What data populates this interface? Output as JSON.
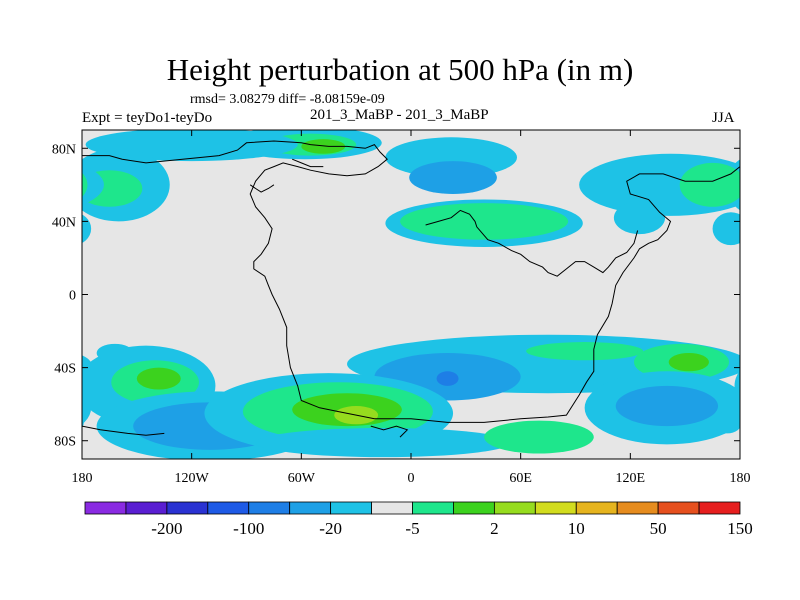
{
  "chart_data": {
    "type": "contour-map",
    "title": "Height perturbation at 500 hPa (in m)",
    "stats_line": "rmsd= 3.08279 diff= -8.08159e-09",
    "left_label": "Expt = teyDo1-teyDo",
    "center_label": "201_3_MaBP - 201_3_MaBP",
    "right_label": "JJA",
    "lon_range": [
      -180,
      180
    ],
    "lat_range": [
      -90,
      90
    ],
    "x_ticks": [
      {
        "value": -180,
        "label": "180"
      },
      {
        "value": -120,
        "label": "120W"
      },
      {
        "value": -60,
        "label": "60W"
      },
      {
        "value": 0,
        "label": "0"
      },
      {
        "value": 60,
        "label": "60E"
      },
      {
        "value": 120,
        "label": "120E"
      },
      {
        "value": 180,
        "label": "180"
      }
    ],
    "y_ticks": [
      {
        "value": 80,
        "label": "80N"
      },
      {
        "value": 40,
        "label": "40N"
      },
      {
        "value": 0,
        "label": "0"
      },
      {
        "value": -40,
        "label": "40S"
      },
      {
        "value": -80,
        "label": "80S"
      }
    ],
    "colorbar": {
      "colors": [
        "#8A2BE2",
        "#5A1ED2",
        "#2A32D2",
        "#1E5AE6",
        "#1E7EE6",
        "#1EA0E6",
        "#1EC2E6",
        "#E6E6E6",
        "#1EE68C",
        "#3CD21E",
        "#96DC1E",
        "#D2DC1E",
        "#E6B41E",
        "#E68C1E",
        "#E6501E",
        "#E61E1E"
      ],
      "labels": [
        {
          "after_index": 1,
          "text": "-200"
        },
        {
          "after_index": 3,
          "text": "-100"
        },
        {
          "after_index": 5,
          "text": "-20"
        },
        {
          "after_index": 7,
          "text": "-5"
        },
        {
          "after_index": 9,
          "text": "2"
        },
        {
          "after_index": 11,
          "text": "10"
        },
        {
          "after_index": 13,
          "text": "50"
        },
        {
          "after_index": 15,
          "text": "150"
        }
      ]
    },
    "blobs": [
      {
        "lon": 22,
        "lat": 75,
        "rx": 36,
        "ry": 11,
        "level": "cyan"
      },
      {
        "lon": -58,
        "lat": 83,
        "rx": 42,
        "ry": 9,
        "level": "cyan"
      },
      {
        "lon": -55,
        "lat": 82,
        "rx": 25,
        "ry": 6,
        "level": "green"
      },
      {
        "lon": -48,
        "lat": 81,
        "rx": 12,
        "ry": 4,
        "level": "lime"
      },
      {
        "lon": -120,
        "lat": 82,
        "rx": 58,
        "ry": 9,
        "level": "cyan"
      },
      {
        "lon": -160,
        "lat": 60,
        "rx": 28,
        "ry": 20,
        "level": "cyan"
      },
      {
        "lon": -165,
        "lat": 58,
        "rx": 18,
        "ry": 10,
        "level": "green"
      },
      {
        "lon": 175,
        "lat": 36,
        "rx": 10,
        "ry": 9,
        "level": "cyan"
      },
      {
        "lon": 40,
        "lat": 39,
        "rx": 54,
        "ry": 13,
        "level": "cyan"
      },
      {
        "lon": 40,
        "lat": 40,
        "rx": 46,
        "ry": 10,
        "level": "green"
      },
      {
        "lon": 23,
        "lat": 64,
        "rx": 24,
        "ry": 9,
        "level": "blue"
      },
      {
        "lon": 142,
        "lat": 60,
        "rx": 50,
        "ry": 17,
        "level": "cyan"
      },
      {
        "lon": 165,
        "lat": 60,
        "rx": 18,
        "ry": 12,
        "level": "green"
      },
      {
        "lon": 125,
        "lat": 42,
        "rx": 14,
        "ry": 9,
        "level": "cyan"
      },
      {
        "lon": 75,
        "lat": -38,
        "rx": 110,
        "ry": 16,
        "level": "cyan"
      },
      {
        "lon": 95,
        "lat": -31,
        "rx": 32,
        "ry": 5,
        "level": "green"
      },
      {
        "lon": 148,
        "lat": -37,
        "rx": 26,
        "ry": 10,
        "level": "green"
      },
      {
        "lon": 152,
        "lat": -37,
        "rx": 11,
        "ry": 5,
        "level": "lime"
      },
      {
        "lon": 20,
        "lat": -45,
        "rx": 40,
        "ry": 13,
        "level": "blue"
      },
      {
        "lon": 20,
        "lat": -46,
        "rx": 6,
        "ry": 4,
        "level": "deepblue"
      },
      {
        "lon": 140,
        "lat": -62,
        "rx": 45,
        "ry": 20,
        "level": "cyan"
      },
      {
        "lon": 140,
        "lat": -61,
        "rx": 28,
        "ry": 11,
        "level": "blue"
      },
      {
        "lon": -145,
        "lat": -50,
        "rx": 38,
        "ry": 22,
        "level": "cyan"
      },
      {
        "lon": -140,
        "lat": -48,
        "rx": 24,
        "ry": 12,
        "level": "green"
      },
      {
        "lon": -138,
        "lat": -46,
        "rx": 12,
        "ry": 6,
        "level": "lime"
      },
      {
        "lon": -162,
        "lat": -32,
        "rx": 10,
        "ry": 5,
        "level": "cyan"
      },
      {
        "lon": -110,
        "lat": -72,
        "rx": 62,
        "ry": 19,
        "level": "cyan"
      },
      {
        "lon": -110,
        "lat": -72,
        "rx": 42,
        "ry": 13,
        "level": "blue"
      },
      {
        "lon": -45,
        "lat": -65,
        "rx": 68,
        "ry": 22,
        "level": "cyan"
      },
      {
        "lon": -40,
        "lat": -64,
        "rx": 52,
        "ry": 16,
        "level": "green"
      },
      {
        "lon": -35,
        "lat": -63,
        "rx": 30,
        "ry": 9,
        "level": "lime"
      },
      {
        "lon": -30,
        "lat": -66,
        "rx": 12,
        "ry": 5,
        "level": "yellow"
      },
      {
        "lon": -15,
        "lat": -81,
        "rx": 70,
        "ry": 8,
        "level": "cyan"
      },
      {
        "lon": 70,
        "lat": -78,
        "rx": 30,
        "ry": 9,
        "level": "green"
      },
      {
        "lon": 173,
        "lat": -70,
        "rx": 8,
        "ry": 6,
        "level": "cyan"
      }
    ],
    "coastline": [
      [
        [
          -180,
          76
        ],
        [
          -165,
          76
        ],
        [
          -158,
          74
        ],
        [
          -145,
          72
        ],
        [
          -125,
          74
        ],
        [
          -105,
          76
        ],
        [
          -95,
          79
        ],
        [
          -90,
          83
        ],
        [
          -75,
          84
        ],
        [
          -60,
          83
        ],
        [
          -55,
          82
        ],
        [
          -45,
          81
        ],
        [
          -35,
          81
        ],
        [
          -25,
          80
        ],
        [
          -20,
          82
        ],
        [
          -17,
          78
        ],
        [
          -13,
          74
        ],
        [
          -18,
          70
        ],
        [
          -25,
          66
        ],
        [
          -35,
          65
        ],
        [
          -45,
          66
        ],
        [
          -55,
          68
        ],
        [
          -62,
          70
        ],
        [
          -70,
          72
        ],
        [
          -75,
          70
        ],
        [
          -80,
          68
        ],
        [
          -85,
          62
        ],
        [
          -88,
          55
        ],
        [
          -85,
          48
        ],
        [
          -80,
          42
        ],
        [
          -76,
          36
        ],
        [
          -78,
          28
        ],
        [
          -82,
          22
        ],
        [
          -86,
          18
        ],
        [
          -86,
          14
        ],
        [
          -80,
          10
        ],
        [
          -78,
          5
        ],
        [
          -76,
          0
        ],
        [
          -72,
          -8
        ],
        [
          -68,
          -18
        ],
        [
          -68,
          -28
        ],
        [
          -66,
          -40
        ],
        [
          -62,
          -50
        ],
        [
          -60,
          -58
        ],
        [
          -50,
          -62
        ],
        [
          -40,
          -64
        ],
        [
          -20,
          -68
        ],
        [
          0,
          -68
        ],
        [
          20,
          -70
        ],
        [
          40,
          -70
        ],
        [
          60,
          -68
        ],
        [
          75,
          -67
        ],
        [
          85,
          -66
        ],
        [
          92,
          -55
        ],
        [
          96,
          -48
        ],
        [
          100,
          -42
        ],
        [
          100,
          -30
        ],
        [
          102,
          -22
        ],
        [
          108,
          -12
        ],
        [
          110,
          -5
        ],
        [
          112,
          5
        ],
        [
          116,
          12
        ],
        [
          122,
          20
        ],
        [
          125,
          25
        ],
        [
          130,
          28
        ],
        [
          135,
          30
        ],
        [
          140,
          35
        ],
        [
          142,
          40
        ],
        [
          136,
          45
        ],
        [
          130,
          52
        ],
        [
          120,
          55
        ],
        [
          118,
          62
        ],
        [
          125,
          66
        ],
        [
          138,
          66
        ],
        [
          150,
          62
        ],
        [
          165,
          62
        ],
        [
          175,
          66
        ],
        [
          180,
          70
        ]
      ],
      [
        [
          -180,
          -72
        ],
        [
          -170,
          -74
        ],
        [
          -155,
          -76
        ],
        [
          -145,
          -77
        ],
        [
          -135,
          -76
        ]
      ],
      [
        [
          8,
          38
        ],
        [
          15,
          40
        ],
        [
          22,
          42
        ],
        [
          27,
          46
        ],
        [
          32,
          44
        ],
        [
          35,
          40
        ],
        [
          36,
          37
        ],
        [
          42,
          30
        ],
        [
          48,
          28
        ],
        [
          55,
          24
        ],
        [
          60,
          22
        ],
        [
          65,
          18
        ],
        [
          72,
          15
        ],
        [
          75,
          12
        ],
        [
          80,
          10
        ],
        [
          85,
          14
        ],
        [
          90,
          18
        ],
        [
          95,
          18
        ],
        [
          100,
          15
        ],
        [
          105,
          12
        ],
        [
          108,
          15
        ],
        [
          112,
          20
        ],
        [
          118,
          23
        ],
        [
          122,
          28
        ],
        [
          124,
          35
        ]
      ],
      [
        [
          -65,
          74
        ],
        [
          -60,
          72
        ],
        [
          -55,
          70
        ],
        [
          -48,
          70
        ]
      ],
      [
        [
          -88,
          60
        ],
        [
          -85,
          58
        ],
        [
          -82,
          56
        ],
        [
          -78,
          58
        ],
        [
          -75,
          60
        ]
      ],
      [
        [
          -22,
          -72
        ],
        [
          -15,
          -74
        ],
        [
          -8,
          -72
        ],
        [
          -2,
          -74
        ],
        [
          -6,
          -78
        ]
      ]
    ]
  }
}
